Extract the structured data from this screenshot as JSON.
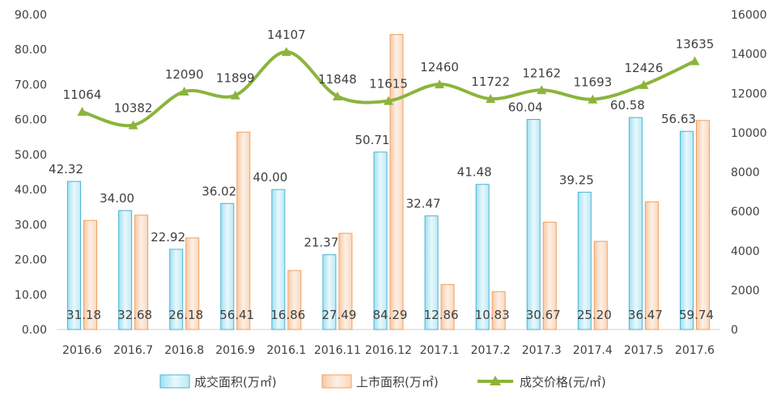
{
  "chart_data": {
    "type": "bar",
    "title": "",
    "categories": [
      "2016.6",
      "2016.7",
      "2016.8",
      "2016.9",
      "2016.1",
      "2016.11",
      "2016.12",
      "2017.1",
      "2017.2",
      "2017.3",
      "2017.4",
      "2017.5",
      "2017.6"
    ],
    "series": [
      {
        "name": "成交面积(万㎡)",
        "type": "bar",
        "axis": "left",
        "color": "#4bb4d2",
        "values": [
          42.32,
          34.0,
          22.92,
          36.02,
          40.0,
          21.37,
          50.71,
          32.47,
          41.48,
          60.04,
          39.25,
          60.58,
          56.63
        ],
        "labels": [
          "42.32",
          "34.00",
          "22.92",
          "36.02",
          "40.00",
          "21.37",
          "50.71",
          "32.47",
          "41.48",
          "60.04",
          "39.25",
          "60.58",
          "56.63"
        ]
      },
      {
        "name": "上市面积(万㎡)",
        "type": "bar",
        "axis": "left",
        "color": "#f0a060",
        "values": [
          31.18,
          32.68,
          26.18,
          56.41,
          16.86,
          27.49,
          84.29,
          12.86,
          10.83,
          30.67,
          25.2,
          36.47,
          59.74
        ],
        "labels": [
          "31.18",
          "32.68",
          "26.18",
          "56.41",
          "16.86",
          "27.49",
          "84.29",
          "12.86",
          "10.83",
          "30.67",
          "25.20",
          "36.47",
          "59.74"
        ]
      },
      {
        "name": "成交价格(元/㎡)",
        "type": "line",
        "axis": "right",
        "color": "#8cb43c",
        "values": [
          11064,
          10382,
          12090,
          11899,
          14107,
          11848,
          11615,
          12460,
          11722,
          12162,
          11693,
          12426,
          13635
        ],
        "labels": [
          "11064",
          "10382",
          "12090",
          "11899",
          "14107",
          "11848",
          "11615",
          "12460",
          "11722",
          "12162",
          "11693",
          "12426",
          "13635"
        ]
      }
    ],
    "y_left": {
      "lim": [
        0,
        90
      ],
      "ticks": [
        "0.00",
        "10.00",
        "20.00",
        "30.00",
        "40.00",
        "50.00",
        "60.00",
        "70.00",
        "80.00",
        "90.00"
      ]
    },
    "y_right": {
      "lim": [
        0,
        16000
      ],
      "ticks": [
        "0",
        "2000",
        "4000",
        "6000",
        "8000",
        "10000",
        "12000",
        "14000",
        "16000"
      ]
    },
    "legend_position": "bottom",
    "grid": false
  }
}
